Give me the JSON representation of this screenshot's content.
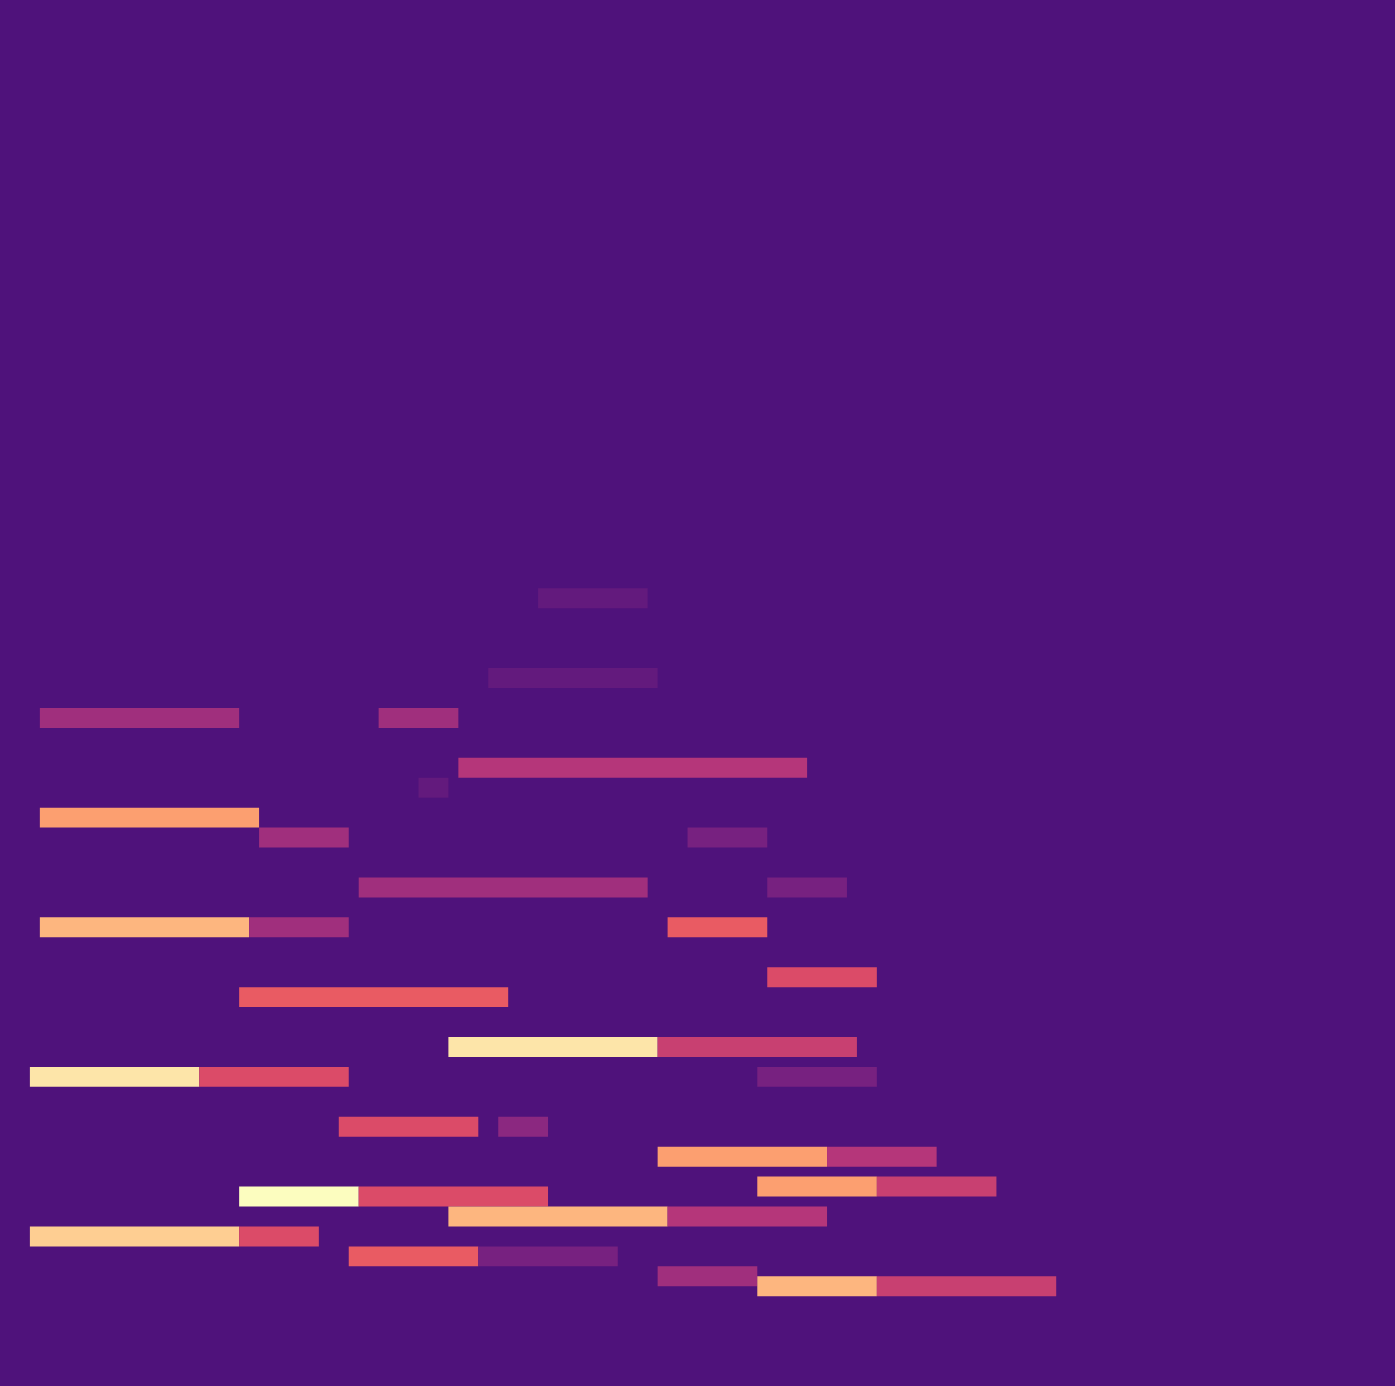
{
  "chart_data": {
    "type": "heatmap",
    "tick_labels": false,
    "grid": false,
    "xlim": [
      0,
      140
    ],
    "ylim": [
      0,
      139
    ],
    "color_range": [
      0,
      1
    ],
    "background": 0.25,
    "cells": [
      {
        "x0": 4,
        "x1": 24,
        "y": 67,
        "value": 0.45
      },
      {
        "x0": 38,
        "x1": 46,
        "y": 67,
        "value": 0.45
      },
      {
        "x0": 54,
        "x1": 65,
        "y": 79,
        "value": 0.3
      },
      {
        "x0": 49,
        "x1": 66,
        "y": 71,
        "value": 0.3
      },
      {
        "x0": 46,
        "x1": 81,
        "y": 62,
        "value": 0.5
      },
      {
        "x0": 42,
        "x1": 45,
        "y": 60,
        "value": 0.3
      },
      {
        "x0": 4,
        "x1": 26,
        "y": 57,
        "value": 0.8
      },
      {
        "x0": 26,
        "x1": 35,
        "y": 55,
        "value": 0.45
      },
      {
        "x0": 69,
        "x1": 77,
        "y": 55,
        "value": 0.35
      },
      {
        "x0": 36,
        "x1": 65,
        "y": 50,
        "value": 0.45
      },
      {
        "x0": 77,
        "x1": 85,
        "y": 50,
        "value": 0.35
      },
      {
        "x0": 4,
        "x1": 25,
        "y": 46,
        "value": 0.85
      },
      {
        "x0": 25,
        "x1": 35,
        "y": 46,
        "value": 0.45
      },
      {
        "x0": 67,
        "x1": 77,
        "y": 46,
        "value": 0.65
      },
      {
        "x0": 77,
        "x1": 88,
        "y": 41,
        "value": 0.6
      },
      {
        "x0": 24,
        "x1": 51,
        "y": 39,
        "value": 0.65
      },
      {
        "x0": 45,
        "x1": 66,
        "y": 34,
        "value": 0.95
      },
      {
        "x0": 66,
        "x1": 86,
        "y": 34,
        "value": 0.55
      },
      {
        "x0": 3,
        "x1": 20,
        "y": 31,
        "value": 0.95
      },
      {
        "x0": 20,
        "x1": 35,
        "y": 31,
        "value": 0.6
      },
      {
        "x0": 76,
        "x1": 88,
        "y": 31,
        "value": 0.35
      },
      {
        "x0": 34,
        "x1": 48,
        "y": 26,
        "value": 0.6
      },
      {
        "x0": 50,
        "x1": 55,
        "y": 26,
        "value": 0.4
      },
      {
        "x0": 66,
        "x1": 83,
        "y": 23,
        "value": 0.8
      },
      {
        "x0": 83,
        "x1": 94,
        "y": 23,
        "value": 0.5
      },
      {
        "x0": 76,
        "x1": 88,
        "y": 20,
        "value": 0.8
      },
      {
        "x0": 88,
        "x1": 100,
        "y": 20,
        "value": 0.55
      },
      {
        "x0": 24,
        "x1": 36,
        "y": 19,
        "value": 1.0
      },
      {
        "x0": 36,
        "x1": 55,
        "y": 19,
        "value": 0.6
      },
      {
        "x0": 45,
        "x1": 67,
        "y": 17,
        "value": 0.85
      },
      {
        "x0": 67,
        "x1": 83,
        "y": 17,
        "value": 0.5
      },
      {
        "x0": 3,
        "x1": 24,
        "y": 15,
        "value": 0.9
      },
      {
        "x0": 24,
        "x1": 32,
        "y": 15,
        "value": 0.6
      },
      {
        "x0": 35,
        "x1": 48,
        "y": 13,
        "value": 0.65
      },
      {
        "x0": 48,
        "x1": 62,
        "y": 13,
        "value": 0.35
      },
      {
        "x0": 66,
        "x1": 76,
        "y": 11,
        "value": 0.45
      },
      {
        "x0": 76,
        "x1": 88,
        "y": 10,
        "value": 0.85
      },
      {
        "x0": 88,
        "x1": 106,
        "y": 10,
        "value": 0.55
      }
    ]
  }
}
